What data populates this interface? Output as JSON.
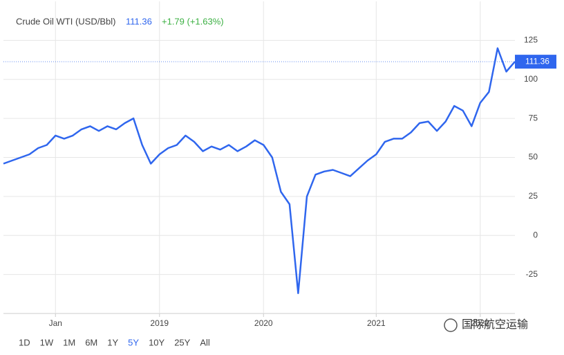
{
  "chart_data": {
    "type": "line",
    "title": "Crude Oil WTI (USD/Bbl)",
    "last": 111.36,
    "change": "+1.79 (+1.63%)",
    "categories": [
      null,
      null,
      null,
      null,
      null,
      null,
      "Jan",
      null,
      null,
      null,
      null,
      null,
      null,
      null,
      null,
      null,
      null,
      null,
      "2019",
      null,
      null,
      null,
      null,
      null,
      null,
      null,
      null,
      null,
      null,
      null,
      "2020",
      null,
      null,
      null,
      null,
      null,
      null,
      null,
      null,
      null,
      null,
      null,
      null,
      "2021",
      null,
      null,
      null,
      null,
      null,
      null,
      null,
      null,
      null,
      null,
      null,
      "2022",
      null,
      null,
      null,
      null
    ],
    "series": [
      {
        "name": "Crude Oil WTI",
        "color": "#2f66ee",
        "values": [
          46,
          48,
          50,
          52,
          56,
          58,
          64,
          62,
          64,
          68,
          70,
          67,
          70,
          68,
          72,
          75,
          58,
          46,
          52,
          56,
          58,
          64,
          60,
          54,
          57,
          55,
          58,
          54,
          57,
          61,
          58,
          50,
          28,
          20,
          -37,
          25,
          39,
          41,
          42,
          40,
          38,
          43,
          48,
          52,
          60,
          62,
          62,
          66,
          72,
          73,
          67,
          73,
          83,
          80,
          70,
          85,
          92,
          120,
          105,
          111.36
        ]
      }
    ],
    "ylim": [
      -50,
      150
    ],
    "yticks": [
      -25,
      0,
      25,
      50,
      75,
      100,
      125
    ],
    "grid": true,
    "ranges": [
      "1D",
      "1W",
      "1M",
      "6M",
      "1Y",
      "5Y",
      "10Y",
      "25Y",
      "All"
    ],
    "active_range": 5,
    "watermark": "国际航空运输"
  }
}
